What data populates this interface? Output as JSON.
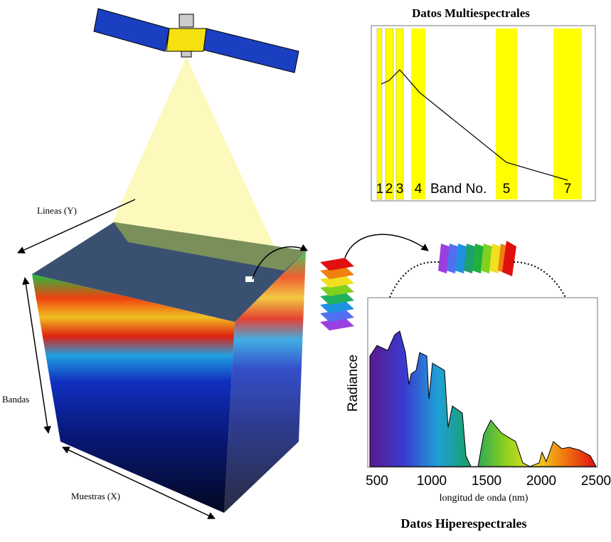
{
  "labels": {
    "lines": "Lineas (Y)",
    "bands": "Bandas",
    "samples": "Muestras (X)"
  },
  "multispectral": {
    "title": "Datos Multiespectrales",
    "band_labels": [
      "1",
      "2",
      "3",
      "4",
      "5",
      "7"
    ],
    "axis_label": "Band No."
  },
  "hyperspectral": {
    "title": "Datos Hiperespectrales",
    "ylabel": "Radiance",
    "xlabel": "longitud de onda (nm)",
    "xlim": [
      500,
      2500
    ],
    "xticks": [
      500,
      1000,
      1500,
      2000,
      2500
    ]
  }
}
